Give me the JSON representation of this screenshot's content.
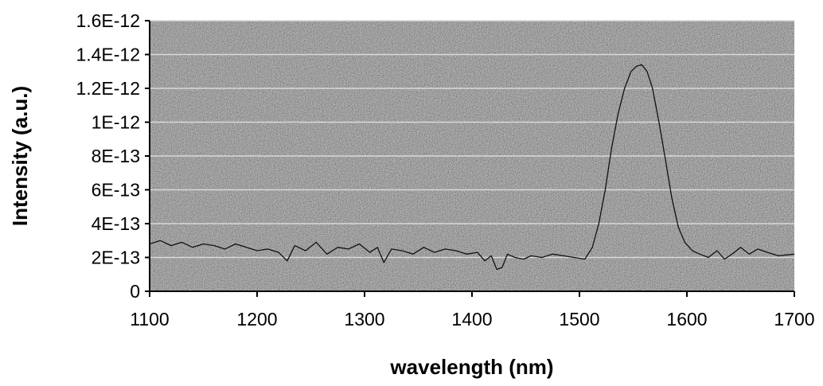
{
  "chart_data": {
    "type": "line",
    "xlabel": "wavelength (nm)",
    "ylabel": "Intensity (a.u.)",
    "xlim": [
      1100,
      1700
    ],
    "ylim": [
      0,
      1.6e-12
    ],
    "x_ticks": [
      1100,
      1200,
      1300,
      1400,
      1500,
      1600,
      1700
    ],
    "x_tick_labels": [
      "1100",
      "1200",
      "1300",
      "1400",
      "1500",
      "1600",
      "1700"
    ],
    "y_ticks": [
      0,
      2e-13,
      4e-13,
      6e-13,
      8e-13,
      1e-12,
      1.2e-12,
      1.4e-12,
      1.6e-12
    ],
    "y_tick_labels": [
      "0",
      "2E-13",
      "4E-13",
      "6E-13",
      "8E-13",
      "1E-12",
      "1.2E-12",
      "1.4E-12",
      "1.6E-12"
    ],
    "grid": "horizontal",
    "legend": "none",
    "colors": {
      "plot_background": "#6e6e6e",
      "gridline": "#d9d9d9",
      "line": "#111111"
    },
    "series": [
      {
        "x": [
          1100,
          1110,
          1120,
          1130,
          1140,
          1150,
          1160,
          1170,
          1180,
          1190,
          1200,
          1210,
          1220,
          1228,
          1235,
          1245,
          1255,
          1265,
          1275,
          1285,
          1295,
          1305,
          1312,
          1318,
          1325,
          1335,
          1345,
          1355,
          1365,
          1375,
          1385,
          1395,
          1405,
          1412,
          1418,
          1423,
          1428,
          1433,
          1440,
          1448,
          1455,
          1465,
          1475,
          1485,
          1495,
          1505,
          1512,
          1518,
          1524,
          1530,
          1536,
          1542,
          1548,
          1553,
          1558,
          1563,
          1568,
          1574,
          1580,
          1586,
          1592,
          1598,
          1605,
          1612,
          1620,
          1628,
          1635,
          1642,
          1650,
          1658,
          1666,
          1675,
          1685,
          1700
        ],
        "y": [
          2.8e-13,
          3e-13,
          2.7e-13,
          2.9e-13,
          2.6e-13,
          2.8e-13,
          2.7e-13,
          2.5e-13,
          2.8e-13,
          2.6e-13,
          2.4e-13,
          2.5e-13,
          2.3e-13,
          1.8e-13,
          2.7e-13,
          2.4e-13,
          2.9e-13,
          2.2e-13,
          2.6e-13,
          2.5e-13,
          2.8e-13,
          2.3e-13,
          2.6e-13,
          1.7e-13,
          2.5e-13,
          2.4e-13,
          2.2e-13,
          2.6e-13,
          2.3e-13,
          2.5e-13,
          2.4e-13,
          2.2e-13,
          2.3e-13,
          1.8e-13,
          2.1e-13,
          1.3e-13,
          1.4e-13,
          2.2e-13,
          2e-13,
          1.9e-13,
          2.1e-13,
          2e-13,
          2.2e-13,
          2.1e-13,
          2e-13,
          1.9e-13,
          2.6e-13,
          4e-13,
          6e-13,
          8.5e-13,
          1.05e-12,
          1.2e-12,
          1.3e-12,
          1.33e-12,
          1.34e-12,
          1.3e-12,
          1.2e-12,
          1e-12,
          7.8e-13,
          5.5e-13,
          3.8e-13,
          2.9e-13,
          2.4e-13,
          2.2e-13,
          2e-13,
          2.4e-13,
          1.9e-13,
          2.2e-13,
          2.6e-13,
          2.2e-13,
          2.5e-13,
          2.3e-13,
          2.1e-13,
          2.2e-13
        ]
      }
    ]
  }
}
